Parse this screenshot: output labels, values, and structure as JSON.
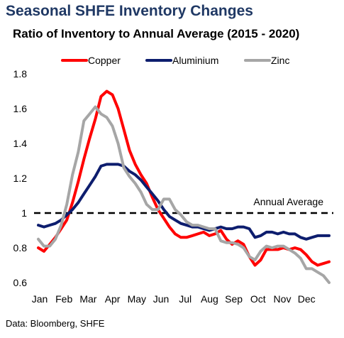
{
  "title": "Seasonal SHFE Inventory Changes",
  "subtitle": "Ratio of Inventory to Annual Average (2015 - 2020)",
  "source": "Data: Bloomberg, SHFE",
  "chart_data": {
    "type": "line",
    "x_tick_labels": [
      "Jan",
      "Feb",
      "Mar",
      "Apr",
      "May",
      "Jun",
      "Jul",
      "Aug",
      "Sep",
      "Oct",
      "Nov",
      "Dec"
    ],
    "x_range": [
      1,
      52
    ],
    "ylim": [
      0.6,
      1.8
    ],
    "y_ticks": [
      0.6,
      0.8,
      1.0,
      1.2,
      1.4,
      1.6,
      1.8
    ],
    "y_tick_labels": [
      "0.6",
      "0.8",
      "1",
      "1.2",
      "1.4",
      "1.6",
      "1.8"
    ],
    "grid": false,
    "legend_position": "top",
    "reference_line": {
      "value": 1.0,
      "label": "Annual Average",
      "style": "dashed",
      "color": "#000000"
    },
    "series": [
      {
        "name": "Copper",
        "color": "#ff0000",
        "values": [
          0.8,
          0.78,
          0.82,
          0.86,
          0.91,
          0.96,
          1.06,
          1.18,
          1.31,
          1.43,
          1.54,
          1.67,
          1.7,
          1.68,
          1.6,
          1.48,
          1.36,
          1.28,
          1.22,
          1.17,
          1.09,
          1.02,
          0.97,
          0.92,
          0.88,
          0.86,
          0.86,
          0.87,
          0.88,
          0.89,
          0.87,
          0.88,
          0.9,
          0.85,
          0.82,
          0.84,
          0.82,
          0.75,
          0.7,
          0.73,
          0.79,
          0.79,
          0.79,
          0.8,
          0.79,
          0.8,
          0.79,
          0.76,
          0.72,
          0.7,
          0.71,
          0.72
        ]
      },
      {
        "name": "Aluminium",
        "color": "#0d1d6e",
        "values": [
          0.93,
          0.92,
          0.93,
          0.94,
          0.96,
          0.99,
          1.02,
          1.06,
          1.11,
          1.16,
          1.21,
          1.27,
          1.28,
          1.28,
          1.28,
          1.27,
          1.24,
          1.22,
          1.19,
          1.15,
          1.11,
          1.07,
          1.02,
          0.98,
          0.96,
          0.94,
          0.93,
          0.92,
          0.92,
          0.91,
          0.9,
          0.91,
          0.92,
          0.91,
          0.91,
          0.92,
          0.92,
          0.91,
          0.86,
          0.87,
          0.89,
          0.89,
          0.88,
          0.89,
          0.88,
          0.88,
          0.86,
          0.85,
          0.86,
          0.87,
          0.87,
          0.87
        ]
      },
      {
        "name": "Zinc",
        "color": "#a6a6a6",
        "values": [
          0.85,
          0.81,
          0.81,
          0.85,
          0.93,
          1.05,
          1.22,
          1.35,
          1.53,
          1.57,
          1.61,
          1.57,
          1.55,
          1.5,
          1.4,
          1.26,
          1.21,
          1.17,
          1.12,
          1.05,
          1.02,
          1.02,
          1.08,
          1.08,
          1.02,
          0.99,
          0.95,
          0.93,
          0.93,
          0.92,
          0.91,
          0.91,
          0.84,
          0.83,
          0.83,
          0.82,
          0.8,
          0.75,
          0.73,
          0.78,
          0.81,
          0.8,
          0.81,
          0.81,
          0.79,
          0.77,
          0.74,
          0.68,
          0.68,
          0.66,
          0.64,
          0.6
        ]
      }
    ]
  }
}
